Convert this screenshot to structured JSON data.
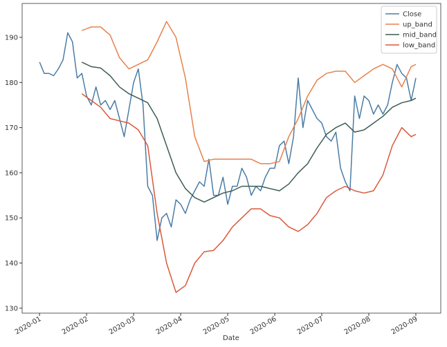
{
  "chart_data": {
    "type": "line",
    "xlabel": "Date",
    "xlim": [
      -0.37,
      8.53
    ],
    "xticks": [
      {
        "value": 0,
        "label": "2020-01"
      },
      {
        "value": 1,
        "label": "2020-02"
      },
      {
        "value": 2,
        "label": "2020-03"
      },
      {
        "value": 3,
        "label": "2020-04"
      },
      {
        "value": 4,
        "label": "2020-05"
      },
      {
        "value": 5,
        "label": "2020-06"
      },
      {
        "value": 6,
        "label": "2020-07"
      },
      {
        "value": 7,
        "label": "2020-08"
      },
      {
        "value": 8,
        "label": "2020-09"
      }
    ],
    "ylim": [
      128.9,
      197.5
    ],
    "yticks": [
      130,
      140,
      150,
      160,
      170,
      180,
      190
    ],
    "legend": "upper right",
    "series": [
      {
        "name": "Close",
        "color": "#4a7ca6",
        "x": [
          0,
          0.1,
          0.2,
          0.3,
          0.4,
          0.5,
          0.6,
          0.7,
          0.8,
          0.9,
          1,
          1.1,
          1.2,
          1.3,
          1.4,
          1.5,
          1.6,
          1.7,
          1.8,
          1.9,
          2,
          2.1,
          2.2,
          2.3,
          2.4,
          2.5,
          2.6,
          2.7,
          2.8,
          2.9,
          3,
          3.1,
          3.2,
          3.3,
          3.4,
          3.5,
          3.6,
          3.7,
          3.8,
          3.9,
          4,
          4.1,
          4.2,
          4.3,
          4.4,
          4.5,
          4.6,
          4.7,
          4.8,
          4.9,
          5,
          5.1,
          5.2,
          5.3,
          5.4,
          5.5,
          5.6,
          5.7,
          5.8,
          5.9,
          6,
          6.1,
          6.2,
          6.3,
          6.4,
          6.5,
          6.6,
          6.7,
          6.8,
          6.9,
          7,
          7.1,
          7.2,
          7.3,
          7.4,
          7.5,
          7.6,
          7.7,
          7.8,
          7.9,
          8
        ],
        "values": [
          184.5,
          182,
          182,
          181.5,
          183,
          185,
          191,
          189,
          181,
          182,
          177,
          175,
          179,
          175,
          176,
          174,
          176,
          172,
          168,
          174,
          180,
          183,
          175,
          157,
          155,
          145,
          150,
          151,
          148,
          154,
          153,
          151,
          154,
          156,
          158,
          157,
          163,
          155,
          155,
          159,
          153,
          157,
          157,
          161,
          159,
          155,
          157,
          156,
          159,
          161,
          161,
          166,
          167,
          162,
          168,
          181,
          170,
          176,
          174,
          172,
          171,
          168,
          167,
          169,
          161,
          158,
          156,
          177,
          172,
          177,
          176,
          173,
          175,
          173,
          175,
          180,
          184,
          182,
          181,
          176,
          181
        ]
      },
      {
        "name": "up_band",
        "color": "#e8804a",
        "x": [
          0.9,
          1.1,
          1.3,
          1.5,
          1.7,
          1.9,
          2.1,
          2.3,
          2.5,
          2.7,
          2.9,
          3.1,
          3.3,
          3.5,
          3.7,
          3.9,
          4.1,
          4.3,
          4.5,
          4.7,
          4.9,
          5.1,
          5.3,
          5.5,
          5.7,
          5.9,
          6.1,
          6.3,
          6.5,
          6.7,
          6.9,
          7.1,
          7.3,
          7.5,
          7.7,
          7.9,
          8
        ],
        "values": [
          191.5,
          192.3,
          192.3,
          190.5,
          185.5,
          183,
          184,
          185,
          189,
          193.5,
          190,
          181,
          168,
          162.5,
          163,
          163,
          163,
          163,
          163,
          162,
          162,
          162.5,
          168,
          172,
          177,
          180.5,
          182,
          182.5,
          182.5,
          180,
          181.5,
          183,
          184,
          183,
          179,
          183.5,
          184
        ]
      },
      {
        "name": "mid_band",
        "color": "#3d5c52",
        "x": [
          0.9,
          1.1,
          1.3,
          1.5,
          1.7,
          1.9,
          2.1,
          2.3,
          2.5,
          2.7,
          2.9,
          3.1,
          3.3,
          3.5,
          3.7,
          3.9,
          4.1,
          4.3,
          4.5,
          4.7,
          4.9,
          5.1,
          5.3,
          5.5,
          5.7,
          5.9,
          6.1,
          6.3,
          6.5,
          6.7,
          6.9,
          7.1,
          7.3,
          7.5,
          7.7,
          7.9,
          8
        ],
        "values": [
          184.5,
          183.5,
          183.2,
          181.5,
          179,
          177.5,
          176.5,
          175.5,
          172,
          166,
          160,
          156.5,
          154.5,
          153.5,
          154.5,
          155.5,
          156,
          157,
          157,
          157,
          156.5,
          156,
          157.5,
          160,
          162,
          165.5,
          168.5,
          170,
          171,
          169,
          169.5,
          171,
          172.5,
          174.5,
          175.5,
          176,
          176.5
        ]
      },
      {
        "name": "low_band",
        "color": "#d9583a",
        "x": [
          0.9,
          1.1,
          1.3,
          1.5,
          1.7,
          1.9,
          2.1,
          2.3,
          2.5,
          2.7,
          2.9,
          3.1,
          3.3,
          3.5,
          3.7,
          3.9,
          4.1,
          4.3,
          4.5,
          4.7,
          4.9,
          5.1,
          5.3,
          5.5,
          5.7,
          5.9,
          6.1,
          6.3,
          6.5,
          6.7,
          6.9,
          7.1,
          7.3,
          7.5,
          7.7,
          7.9,
          8
        ],
        "values": [
          177.5,
          176,
          174.5,
          172,
          171.5,
          171,
          169.5,
          166,
          151,
          140,
          133.5,
          135,
          140,
          142.5,
          142.8,
          145,
          148,
          150,
          152,
          152,
          150.5,
          150,
          148,
          147,
          148.5,
          151,
          154.5,
          156,
          157,
          156,
          155.5,
          156,
          159.5,
          166,
          170,
          168,
          168.5
        ]
      }
    ]
  }
}
